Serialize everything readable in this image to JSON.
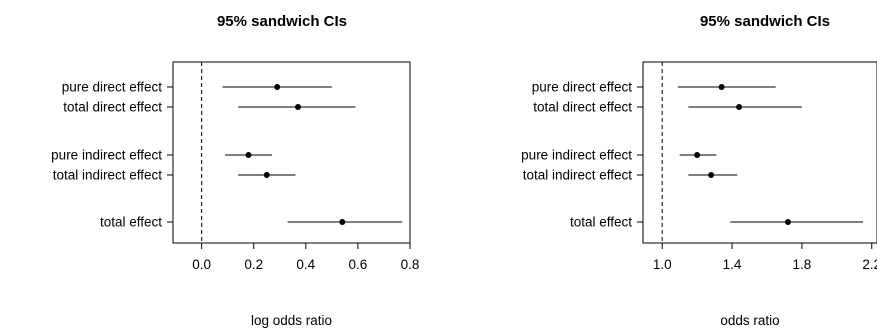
{
  "chart_data": [
    {
      "type": "forest",
      "title": "95% sandwich CIs",
      "xlabel": "log odds ratio",
      "xlim": [
        -0.11,
        0.8
      ],
      "xticks": [
        0.0,
        0.2,
        0.4,
        0.6,
        0.8
      ],
      "tick_labels": [
        "0.0",
        "0.2",
        "0.4",
        "0.6",
        "0.8"
      ],
      "reference_line": 0.0,
      "rows": [
        {
          "label": "pure direct effect",
          "estimate": 0.29,
          "lower": 0.08,
          "upper": 0.5
        },
        {
          "label": "total direct effect",
          "estimate": 0.37,
          "lower": 0.14,
          "upper": 0.59
        },
        {
          "label": "pure indirect effect",
          "estimate": 0.18,
          "lower": 0.09,
          "upper": 0.27
        },
        {
          "label": "total indirect effect",
          "estimate": 0.25,
          "lower": 0.14,
          "upper": 0.36
        },
        {
          "label": "total effect",
          "estimate": 0.54,
          "lower": 0.33,
          "upper": 0.77
        }
      ]
    },
    {
      "type": "forest",
      "title": "95% sandwich CIs",
      "xlabel": "odds ratio",
      "xlim": [
        0.89,
        2.23
      ],
      "xticks": [
        1.0,
        1.4,
        1.8,
        2.2
      ],
      "tick_labels": [
        "1.0",
        "1.4",
        "1.8",
        "2.2"
      ],
      "reference_line": 1.0,
      "rows": [
        {
          "label": "pure direct effect",
          "estimate": 1.34,
          "lower": 1.09,
          "upper": 1.65
        },
        {
          "label": "total direct effect",
          "estimate": 1.44,
          "lower": 1.15,
          "upper": 1.8
        },
        {
          "label": "pure indirect effect",
          "estimate": 1.2,
          "lower": 1.1,
          "upper": 1.31
        },
        {
          "label": "total indirect effect",
          "estimate": 1.28,
          "lower": 1.15,
          "upper": 1.43
        },
        {
          "label": "total effect",
          "estimate": 1.72,
          "lower": 1.39,
          "upper": 2.15
        }
      ]
    }
  ]
}
